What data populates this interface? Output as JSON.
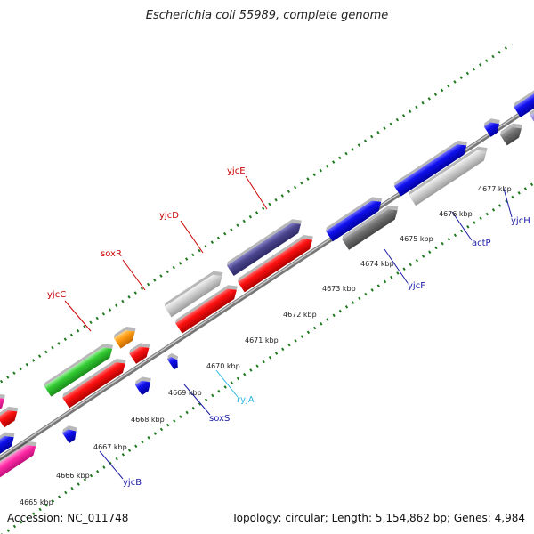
{
  "title": "Escherichia coli 55989, complete genome",
  "footer": {
    "accession": "Accession: NC_011748",
    "summary": "Topology: circular; Length: 5,154,862 bp; Genes: 4,984"
  },
  "colors": {
    "backbone": "#8a8a8a",
    "tick": "#1f7a1f",
    "kbp_label": "#222222"
  },
  "kbp_labels": [
    "4665 kbp",
    "4666 kbp",
    "4667 kbp",
    "4668 kbp",
    "4669 kbp",
    "4670 kbp",
    "4671 kbp",
    "4672 kbp",
    "4673 kbp",
    "4674 kbp",
    "4675 kbp",
    "4676 kbp",
    "4677 kbp"
  ],
  "gene_labels": [
    {
      "text": "yjcC",
      "color": "#cc0000"
    },
    {
      "text": "soxR",
      "color": "#cc0000"
    },
    {
      "text": "yjcD",
      "color": "#cc0000"
    },
    {
      "text": "yjcE",
      "color": "#cc0000"
    },
    {
      "text": "yjcB",
      "color": "#1a1aa6"
    },
    {
      "text": "soxS",
      "color": "#1a1aa6"
    },
    {
      "text": "ryjA",
      "color": "#29b6e0"
    },
    {
      "text": "yjcF",
      "color": "#1a1aa6"
    },
    {
      "text": "actP",
      "color": "#1a1aa6"
    },
    {
      "text": "yjcH",
      "color": "#1a1aa6"
    }
  ]
}
